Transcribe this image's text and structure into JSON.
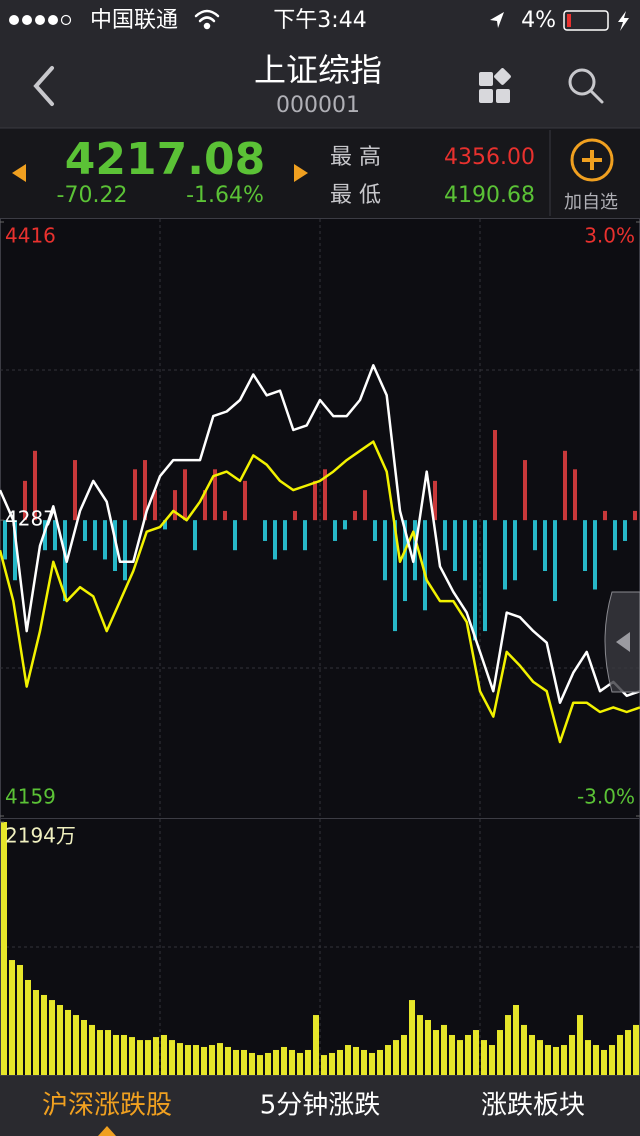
{
  "status_bar": {
    "carrier": "中国联通",
    "time": "下午3:44",
    "battery": "4%"
  },
  "nav": {
    "title": "上证综指",
    "code": "000001"
  },
  "quote": {
    "price": "4217.08",
    "change": "-70.22",
    "change_pct": "-1.64%",
    "high_label": "最 高",
    "high": "4356.00",
    "low_label": "最 低",
    "low": "4190.68",
    "add_label": "加自选"
  },
  "price_chart": {
    "ylim": [
      4159,
      4416
    ],
    "yticks": [
      4159,
      4287,
      4416
    ],
    "y2lim": [
      -3.0,
      3.0
    ],
    "y2ticks": [
      {
        "value": 3.0,
        "label": "3.0%"
      },
      {
        "value": -3.0,
        "label": "-3.0%"
      }
    ],
    "price": [
      4300,
      4287,
      4239,
      4276,
      4293,
      4269,
      4291,
      4304,
      4295,
      4269,
      4269,
      4291,
      4306,
      4313,
      4313,
      4313,
      4332,
      4334,
      4339,
      4350,
      4341,
      4343,
      4326,
      4328,
      4339,
      4332,
      4332,
      4339,
      4354,
      4341,
      4291,
      4269,
      4308,
      4267,
      4256,
      4247,
      4230,
      4213,
      4247,
      4245,
      4239,
      4234,
      4208,
      4221,
      4230,
      4213,
      4217,
      4211,
      4213
    ],
    "average": [
      4274,
      4252,
      4215,
      4239,
      4269,
      4252,
      4258,
      4254,
      4239,
      4252,
      4265,
      4282,
      4284,
      4291,
      4287,
      4295,
      4306,
      4308,
      4304,
      4315,
      4311,
      4304,
      4300,
      4302,
      4304,
      4308,
      4313,
      4317,
      4321,
      4308,
      4269,
      4282,
      4261,
      4252,
      4252,
      4243,
      4213,
      4202,
      4230,
      4224,
      4217,
      4213,
      4191,
      4208,
      4208,
      4204,
      4206,
      4204,
      4206
    ],
    "flow": [
      4270,
      4261,
      4304,
      4317,
      4274,
      4274,
      4252,
      4313,
      4278,
      4274,
      4270,
      4265,
      4261,
      4309,
      4313,
      4300,
      4283,
      4300,
      4309,
      4274,
      4300,
      4309,
      4291,
      4274,
      4304,
      4287,
      4278,
      4270,
      4274,
      4291,
      4274,
      4304,
      4309,
      4278,
      4283,
      4291,
      4300,
      4278,
      4261,
      4239,
      4252,
      4261,
      4248,
      4304,
      4274,
      4265,
      4261,
      4235,
      4239,
      4326,
      4257,
      4261,
      4313,
      4274,
      4265,
      4252,
      4317,
      4309,
      4265,
      4257,
      4291,
      4274,
      4278,
      4291
    ]
  },
  "volume_chart": {
    "ylim": [
      0,
      2194
    ],
    "yticks": [
      {
        "value": 2194,
        "label": "2194万"
      }
    ],
    "values": [
      2194,
      997,
      954,
      824,
      737,
      694,
      650,
      607,
      564,
      520,
      477,
      434,
      390,
      390,
      347,
      347,
      329,
      303,
      303,
      329,
      347,
      303,
      277,
      260,
      260,
      243,
      260,
      277,
      243,
      217,
      217,
      191,
      173,
      191,
      217,
      243,
      217,
      191,
      217,
      520,
      173,
      191,
      217,
      260,
      243,
      217,
      191,
      217,
      260,
      303,
      347,
      650,
      520,
      477,
      390,
      434,
      347,
      303,
      347,
      390,
      303,
      260,
      390,
      520,
      607,
      434,
      347,
      303,
      260,
      243,
      260,
      347,
      520,
      303,
      260,
      217,
      260,
      347,
      390,
      434
    ]
  },
  "tabs": [
    "沪深涨跌股",
    "5分钟涨跌",
    "涨跌板块"
  ]
}
